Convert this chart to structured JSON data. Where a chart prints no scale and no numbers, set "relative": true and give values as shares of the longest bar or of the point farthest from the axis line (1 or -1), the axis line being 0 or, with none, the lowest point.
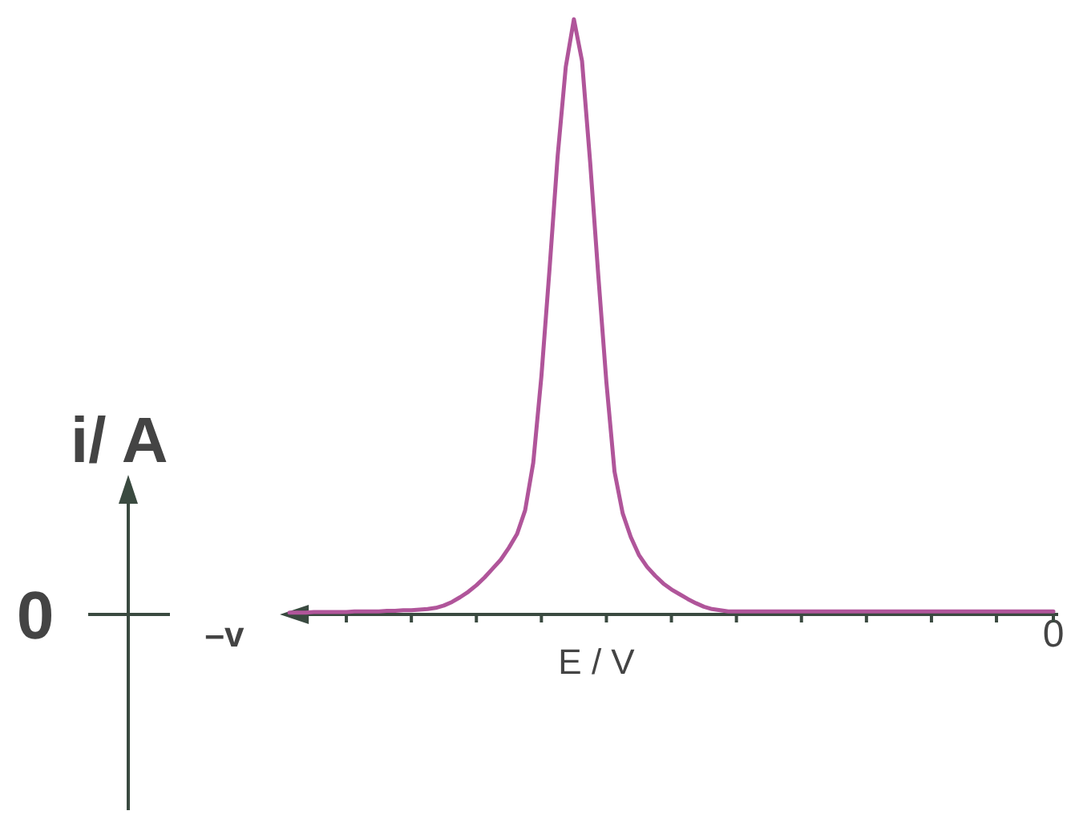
{
  "chart_data": {
    "type": "line",
    "relative": true,
    "xlabel": "E / V",
    "ylabel": "i/ A",
    "annotations": [
      "0"
    ],
    "categories": [
      "–v",
      null,
      null,
      null,
      null,
      null,
      null,
      null,
      null,
      null,
      null,
      null,
      null,
      null,
      null,
      null,
      null,
      null,
      null,
      null,
      null,
      null,
      null,
      null,
      null,
      null,
      null,
      null,
      null,
      null,
      null,
      null,
      null,
      null,
      null,
      null,
      null,
      null,
      null,
      null,
      null,
      null,
      null,
      null,
      null,
      null,
      null,
      null,
      null,
      null,
      null,
      null,
      null,
      null,
      null,
      null,
      null,
      null,
      null,
      null,
      null,
      null,
      null,
      null,
      null,
      null,
      null,
      null,
      null,
      null,
      null,
      null,
      null,
      null,
      null,
      null,
      null,
      null,
      null,
      null,
      null,
      null,
      null,
      null,
      null,
      null,
      null,
      null,
      null,
      null,
      null,
      null,
      null,
      null,
      null,
      null,
      null,
      null,
      null,
      null,
      null,
      null,
      "0"
    ],
    "series": [
      {
        "color": "#b0559a",
        "values": [
          null,
          null,
          null,
          null,
          null,
          null,
          null,
          null,
          0.003,
          0.003,
          0.003,
          0.004,
          0.004,
          0.004,
          0.004,
          0.004,
          0.005,
          0.005,
          0.005,
          0.005,
          0.006,
          0.006,
          0.007,
          0.007,
          0.008,
          0.009,
          0.011,
          0.015,
          0.021,
          0.029,
          0.038,
          0.049,
          0.062,
          0.077,
          0.092,
          0.112,
          0.135,
          0.175,
          0.255,
          0.4,
          0.58,
          0.77,
          0.92,
          1,
          0.93,
          0.76,
          0.57,
          0.39,
          0.24,
          0.17,
          0.13,
          0.1,
          0.08,
          0.065,
          0.052,
          0.042,
          0.034,
          0.026,
          0.019,
          0.013,
          0.009,
          0.007,
          0.005,
          0.005,
          0.005,
          0.005,
          0.005,
          0.005,
          0.005,
          0.005,
          0.005,
          0.005,
          0.005,
          0.005,
          0.005,
          0.005,
          0.005,
          0.005,
          0.005,
          0.005,
          0.005,
          0.005,
          0.005,
          0.005,
          0.005,
          0.005,
          0.005,
          0.005,
          0.005,
          0.005,
          0.005,
          0.005,
          0.005,
          0.005,
          0.005,
          0.005,
          0.005,
          0.005,
          0.005,
          0.005,
          0.005,
          0.005,
          0.005
        ]
      }
    ],
    "marker": "none",
    "line_style": "solid"
  }
}
